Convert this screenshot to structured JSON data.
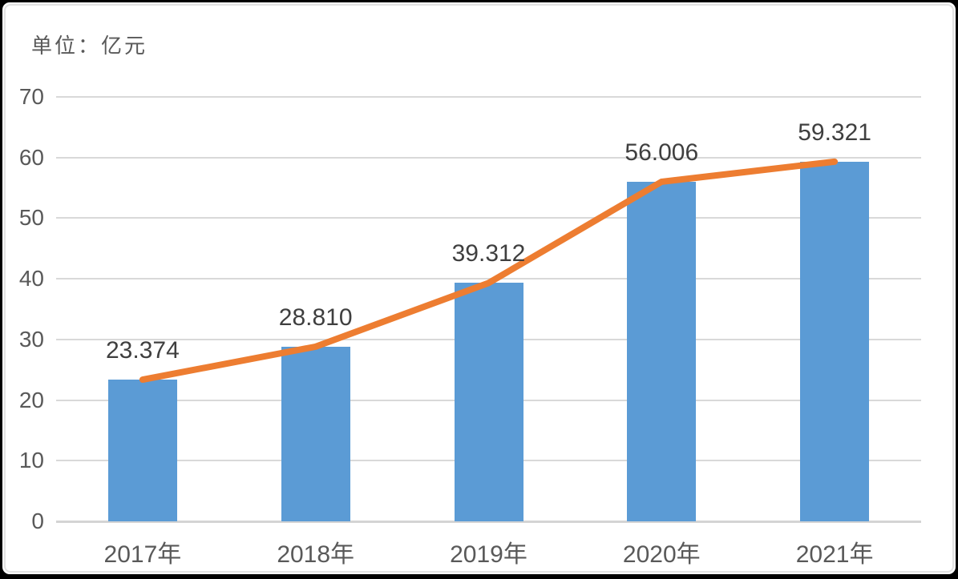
{
  "unit_label": "单位：亿元",
  "chart_data": {
    "type": "bar",
    "title": "",
    "categories": [
      "2017年",
      "2018年",
      "2019年",
      "2020年",
      "2021年"
    ],
    "series": [
      {
        "name": "bars",
        "type": "bar",
        "color": "#5B9BD5",
        "values": [
          23.374,
          28.81,
          39.312,
          56.006,
          59.321
        ]
      },
      {
        "name": "line",
        "type": "line",
        "color": "#ED7D31",
        "values": [
          23.374,
          28.81,
          39.312,
          56.006,
          59.321
        ]
      }
    ],
    "data_labels": [
      "23.374",
      "28.810",
      "39.312",
      "56.006",
      "59.321"
    ],
    "y_ticks": [
      "0",
      "10",
      "20",
      "30",
      "40",
      "50",
      "60",
      "70"
    ],
    "ylim": [
      0,
      70
    ],
    "grid": true,
    "legend": "none",
    "gridline_color": "#d9d9d9",
    "axis_color": "#d4d4d4",
    "tick_text_color": "#595959",
    "data_label_color": "#3f3f3f"
  }
}
